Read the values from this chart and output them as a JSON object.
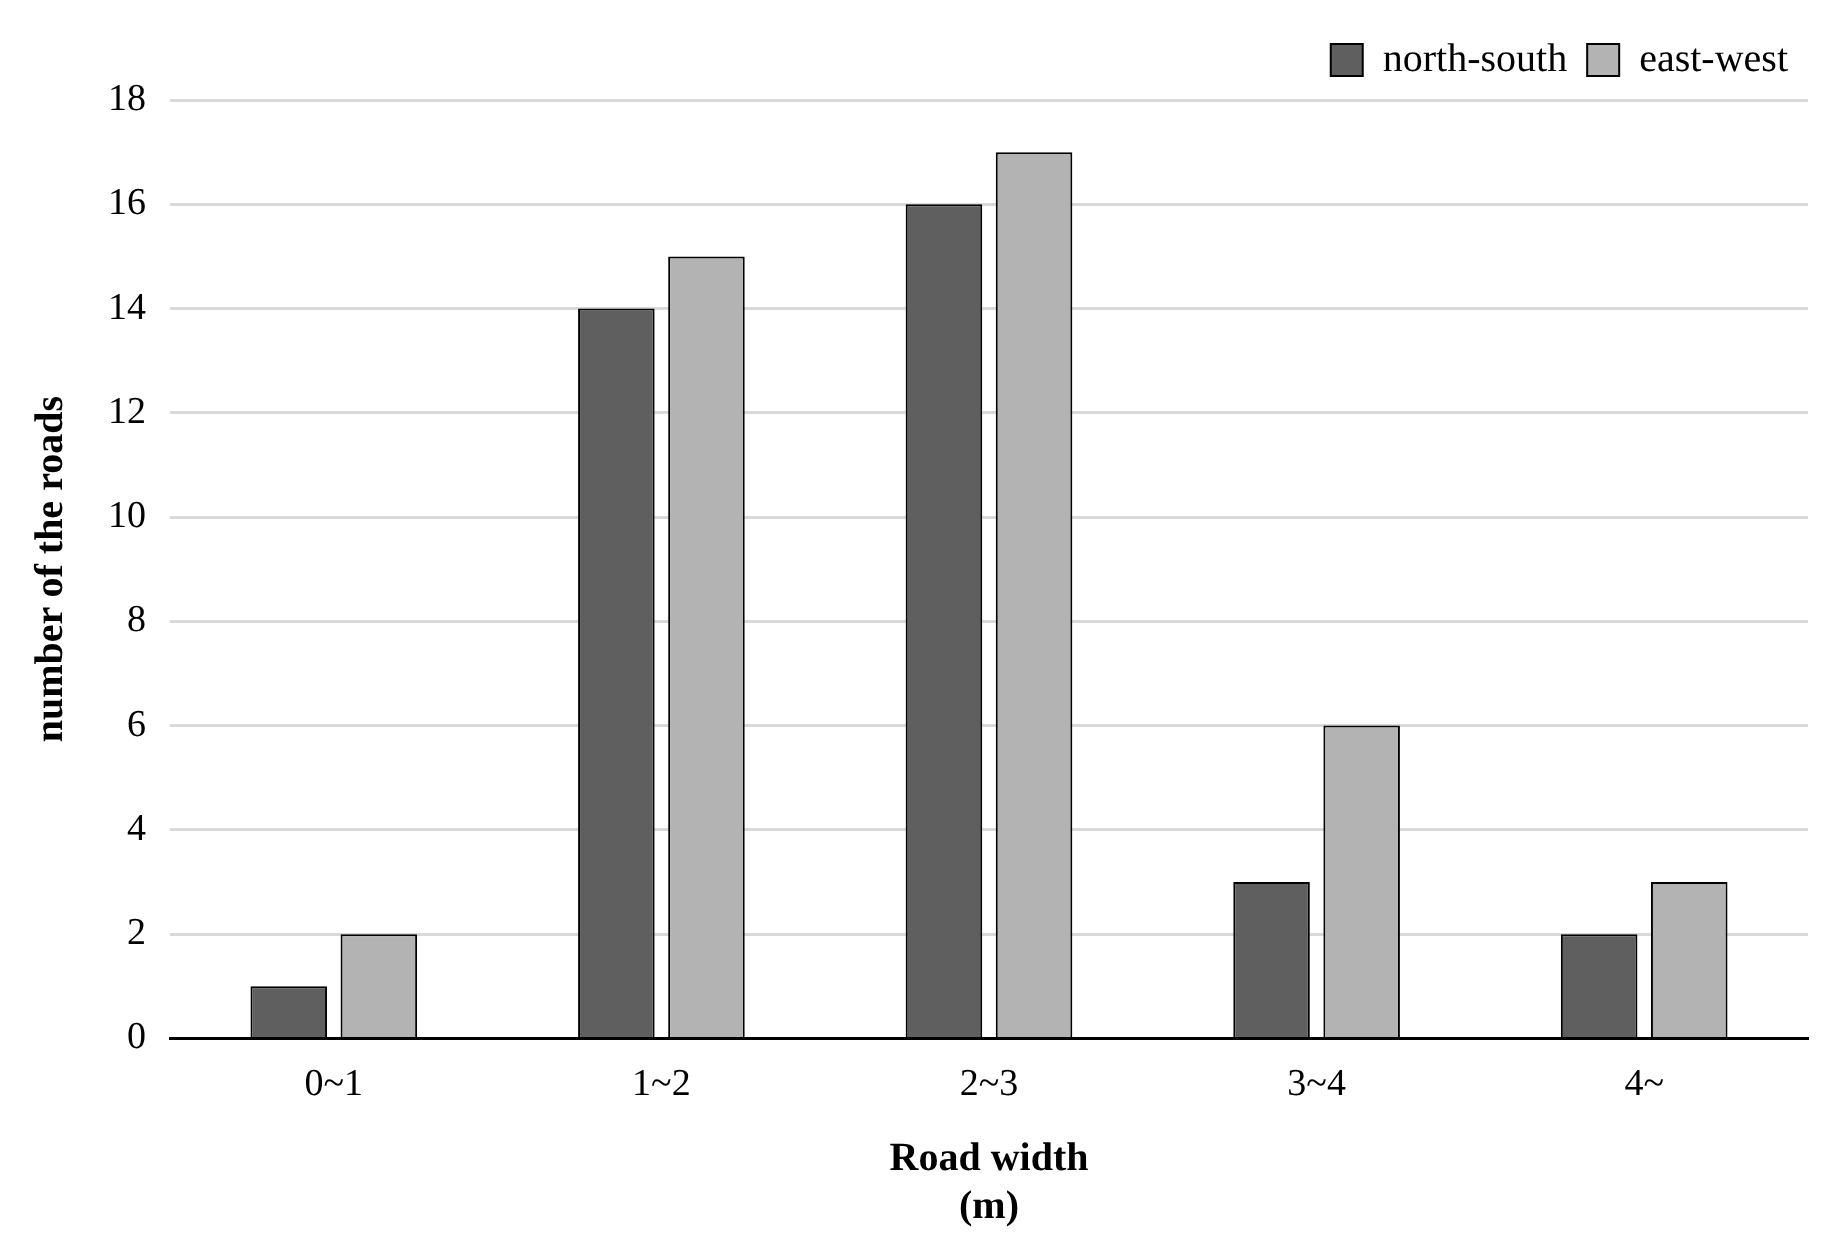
{
  "chart_data": {
    "type": "bar",
    "xlabel": "Road width\n(m)",
    "ylabel": "number of the roads",
    "categories": [
      "0~1",
      "1~2",
      "2~3",
      "3~4",
      "4~"
    ],
    "series": [
      {
        "name": "north-south",
        "color": "#5f5f5f",
        "values": [
          1,
          14,
          16,
          3,
          2
        ]
      },
      {
        "name": "east-west",
        "color": "#b3b3b3",
        "values": [
          2,
          15,
          17,
          6,
          3
        ]
      }
    ],
    "ylim": [
      0,
      18
    ],
    "yticks": [
      0,
      2,
      4,
      6,
      8,
      10,
      12,
      14,
      16,
      18
    ],
    "grid": "y",
    "legend": "top right"
  }
}
